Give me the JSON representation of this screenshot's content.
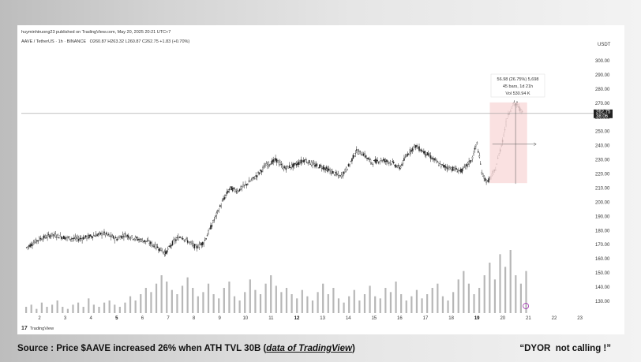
{
  "header": {
    "published": "huyminhtruong23 published on TradingView.com, May 20, 2025 20:21 UTC+7"
  },
  "symbol": {
    "name": "AAVE / TetherUS · 1h · BINANCE",
    "ohlc": "O260.87  H263.32  L260.87  C262.75  +1.83 (+0.70%)"
  },
  "price_axis": {
    "currency": "USDT",
    "labels": [
      "300.00",
      "290.00",
      "280.00",
      "270.00",
      "260.00",
      "250.00",
      "240.00",
      "230.00",
      "220.00",
      "210.00",
      "200.00",
      "190.00",
      "180.00",
      "170.00",
      "160.00",
      "150.00",
      "140.00",
      "130.00"
    ],
    "current_price": "262.75",
    "countdown": "38:06"
  },
  "time_axis": {
    "labels": [
      "2",
      "3",
      "4",
      "5",
      "6",
      "7",
      "8",
      "9",
      "10",
      "11",
      "12",
      "13",
      "14",
      "15",
      "16",
      "17",
      "18",
      "19",
      "20",
      "21",
      "22",
      "23"
    ],
    "bold": [
      "5",
      "12",
      "19"
    ]
  },
  "measure_tooltip": {
    "line1": "56.98 (26.75%) 5,698",
    "line2": "45 bars,  1d 21h",
    "line3": "Vol 530.94 K"
  },
  "chart_data": {
    "type": "candlestick",
    "x_unit": "day of month (May 2025)",
    "y_unit": "USDT",
    "ylim": [
      125,
      305
    ],
    "xlim": [
      1.5,
      23.5
    ],
    "series": [
      {
        "name": "price",
        "points": [
          [
            1.5,
            168
          ],
          [
            2.0,
            174
          ],
          [
            2.5,
            177
          ],
          [
            3.0,
            175
          ],
          [
            3.5,
            174
          ],
          [
            4.0,
            176
          ],
          [
            4.5,
            178
          ],
          [
            5.0,
            174
          ],
          [
            5.3,
            177
          ],
          [
            5.8,
            174
          ],
          [
            6.2,
            172
          ],
          [
            6.6,
            168
          ],
          [
            6.9,
            164
          ],
          [
            7.2,
            172
          ],
          [
            7.5,
            176
          ],
          [
            7.8,
            172
          ],
          [
            8.1,
            168
          ],
          [
            8.4,
            172
          ],
          [
            8.8,
            188
          ],
          [
            9.1,
            200
          ],
          [
            9.4,
            210
          ],
          [
            9.7,
            208
          ],
          [
            10.0,
            212
          ],
          [
            10.4,
            218
          ],
          [
            10.8,
            226
          ],
          [
            11.2,
            230
          ],
          [
            11.5,
            224
          ],
          [
            11.9,
            226
          ],
          [
            12.3,
            230
          ],
          [
            12.7,
            226
          ],
          [
            13.0,
            225
          ],
          [
            13.3,
            222
          ],
          [
            13.7,
            218
          ],
          [
            14.0,
            225
          ],
          [
            14.3,
            236
          ],
          [
            14.6,
            234
          ],
          [
            14.9,
            228
          ],
          [
            15.3,
            230
          ],
          [
            15.7,
            228
          ],
          [
            16.0,
            224
          ],
          [
            16.3,
            234
          ],
          [
            16.6,
            240
          ],
          [
            16.9,
            236
          ],
          [
            17.2,
            232
          ],
          [
            17.6,
            226
          ],
          [
            18.0,
            224
          ],
          [
            18.4,
            222
          ],
          [
            18.8,
            230
          ],
          [
            19.0,
            242
          ],
          [
            19.2,
            220
          ],
          [
            19.4,
            214
          ],
          [
            19.7,
            222
          ],
          [
            20.0,
            244
          ],
          [
            20.2,
            262
          ],
          [
            20.45,
            270
          ],
          [
            20.6,
            268
          ],
          [
            20.8,
            262
          ]
        ]
      },
      {
        "name": "volume",
        "values": [
          3,
          4,
          2,
          5,
          3,
          4,
          6,
          3,
          2,
          4,
          5,
          3,
          7,
          4,
          3,
          5,
          6,
          4,
          3,
          5,
          8,
          6,
          9,
          12,
          10,
          14,
          18,
          15,
          11,
          9,
          13,
          17,
          12,
          8,
          10,
          14,
          9,
          7,
          12,
          15,
          8,
          6,
          10,
          16,
          11,
          9,
          14,
          18,
          13,
          10,
          12,
          9,
          7,
          11,
          8,
          6,
          10,
          14,
          9,
          12,
          7,
          5,
          8,
          11,
          6,
          9,
          13,
          8,
          7,
          12,
          10,
          15,
          9,
          6,
          8,
          11,
          7,
          9,
          12,
          14,
          8,
          6,
          10,
          16,
          20,
          14,
          9,
          12,
          18,
          24,
          16,
          28,
          22,
          30,
          18,
          14,
          20
        ]
      }
    ],
    "range_highlight": {
      "from_day": 19.5,
      "to_day": 20.95,
      "from_price": 213.5,
      "to_price": 270.5
    },
    "current_price_line": 262.75
  },
  "caption": {
    "prefix": "Source : Price $AAVE increased 26% when ATH TVL 30B (",
    "link": "data of TradingView",
    "suffix": ")"
  },
  "disclaimer": "“DYOR  not calling !”",
  "footer": {
    "brand": "TradingView"
  }
}
